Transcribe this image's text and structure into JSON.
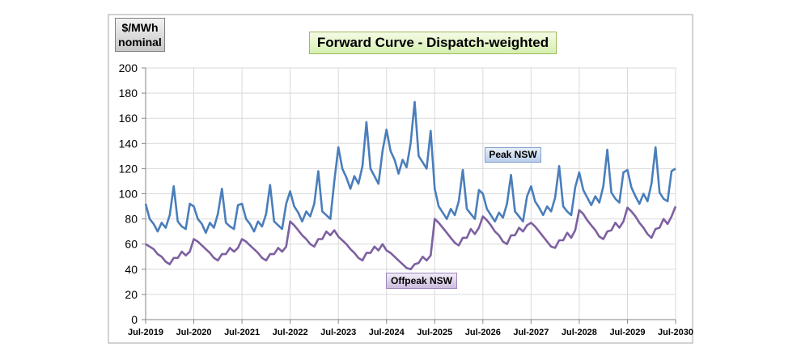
{
  "chart_data": {
    "type": "line",
    "title": "Forward Curve - Dispatch-weighted",
    "ylabel_line1": "$/MWh",
    "ylabel_line2": "nominal",
    "xlabel": "",
    "ylim": [
      0,
      200
    ],
    "yticks": [
      "0",
      "20",
      "40",
      "60",
      "80",
      "100",
      "120",
      "140",
      "160",
      "180",
      "200"
    ],
    "xticks": [
      "Jul-2019",
      "Jul-2020",
      "Jul-2021",
      "Jul-2022",
      "Jul-2023",
      "Jul-2024",
      "Jul-2025",
      "Jul-2026",
      "Jul-2027",
      "Jul-2028",
      "Jul-2029",
      "Jul-2030"
    ],
    "grid": true,
    "legend": "none",
    "colors": {
      "peak": "#4a7ebb",
      "offpeak": "#7d60a0",
      "grid": "#d9d9d9",
      "axis": "#868686"
    },
    "series": [
      {
        "name": "Peak NSW",
        "values": [
          92,
          80,
          76,
          70,
          77,
          73,
          83,
          106,
          78,
          74,
          72,
          92,
          90,
          80,
          76,
          69,
          77,
          73,
          84,
          104,
          77,
          74,
          72,
          91,
          92,
          80,
          76,
          70,
          78,
          74,
          84,
          107,
          78,
          75,
          72,
          92,
          102,
          90,
          85,
          78,
          86,
          82,
          92,
          118,
          86,
          83,
          80,
          110,
          137,
          120,
          113,
          104,
          114,
          108,
          122,
          157,
          120,
          114,
          108,
          134,
          151,
          134,
          127,
          116,
          127,
          121,
          140,
          173,
          130,
          125,
          120,
          150,
          104,
          90,
          85,
          80,
          88,
          83,
          94,
          119,
          88,
          84,
          80,
          103,
          100,
          88,
          83,
          78,
          85,
          81,
          92,
          115,
          86,
          82,
          78,
          98,
          106,
          94,
          89,
          83,
          90,
          86,
          97,
          122,
          90,
          86,
          83,
          105,
          117,
          103,
          97,
          91,
          98,
          93,
          106,
          135,
          101,
          96,
          93,
          117,
          119,
          105,
          98,
          92,
          100,
          94,
          108,
          137,
          101,
          96,
          94,
          118,
          120
        ]
      },
      {
        "name": "Offpeak NSW",
        "values": [
          60,
          58,
          56,
          52,
          50,
          46,
          44,
          49,
          49,
          54,
          51,
          54,
          64,
          62,
          59,
          56,
          53,
          49,
          47,
          52,
          52,
          57,
          54,
          57,
          64,
          62,
          59,
          56,
          53,
          49,
          47,
          52,
          52,
          57,
          54,
          58,
          78,
          75,
          71,
          67,
          64,
          60,
          58,
          64,
          64,
          70,
          67,
          71,
          66,
          63,
          60,
          56,
          53,
          49,
          47,
          53,
          53,
          58,
          55,
          60,
          55,
          53,
          50,
          47,
          44,
          41,
          40,
          44,
          45,
          50,
          47,
          51,
          80,
          77,
          73,
          69,
          65,
          61,
          59,
          65,
          65,
          72,
          68,
          73,
          82,
          79,
          75,
          70,
          67,
          62,
          60,
          67,
          67,
          73,
          70,
          75,
          77,
          74,
          70,
          66,
          62,
          58,
          57,
          63,
          63,
          69,
          65,
          71,
          87,
          84,
          79,
          75,
          71,
          66,
          64,
          70,
          71,
          77,
          73,
          78,
          89,
          86,
          82,
          77,
          73,
          68,
          65,
          72,
          73,
          80,
          76,
          82,
          90
        ]
      }
    ]
  }
}
